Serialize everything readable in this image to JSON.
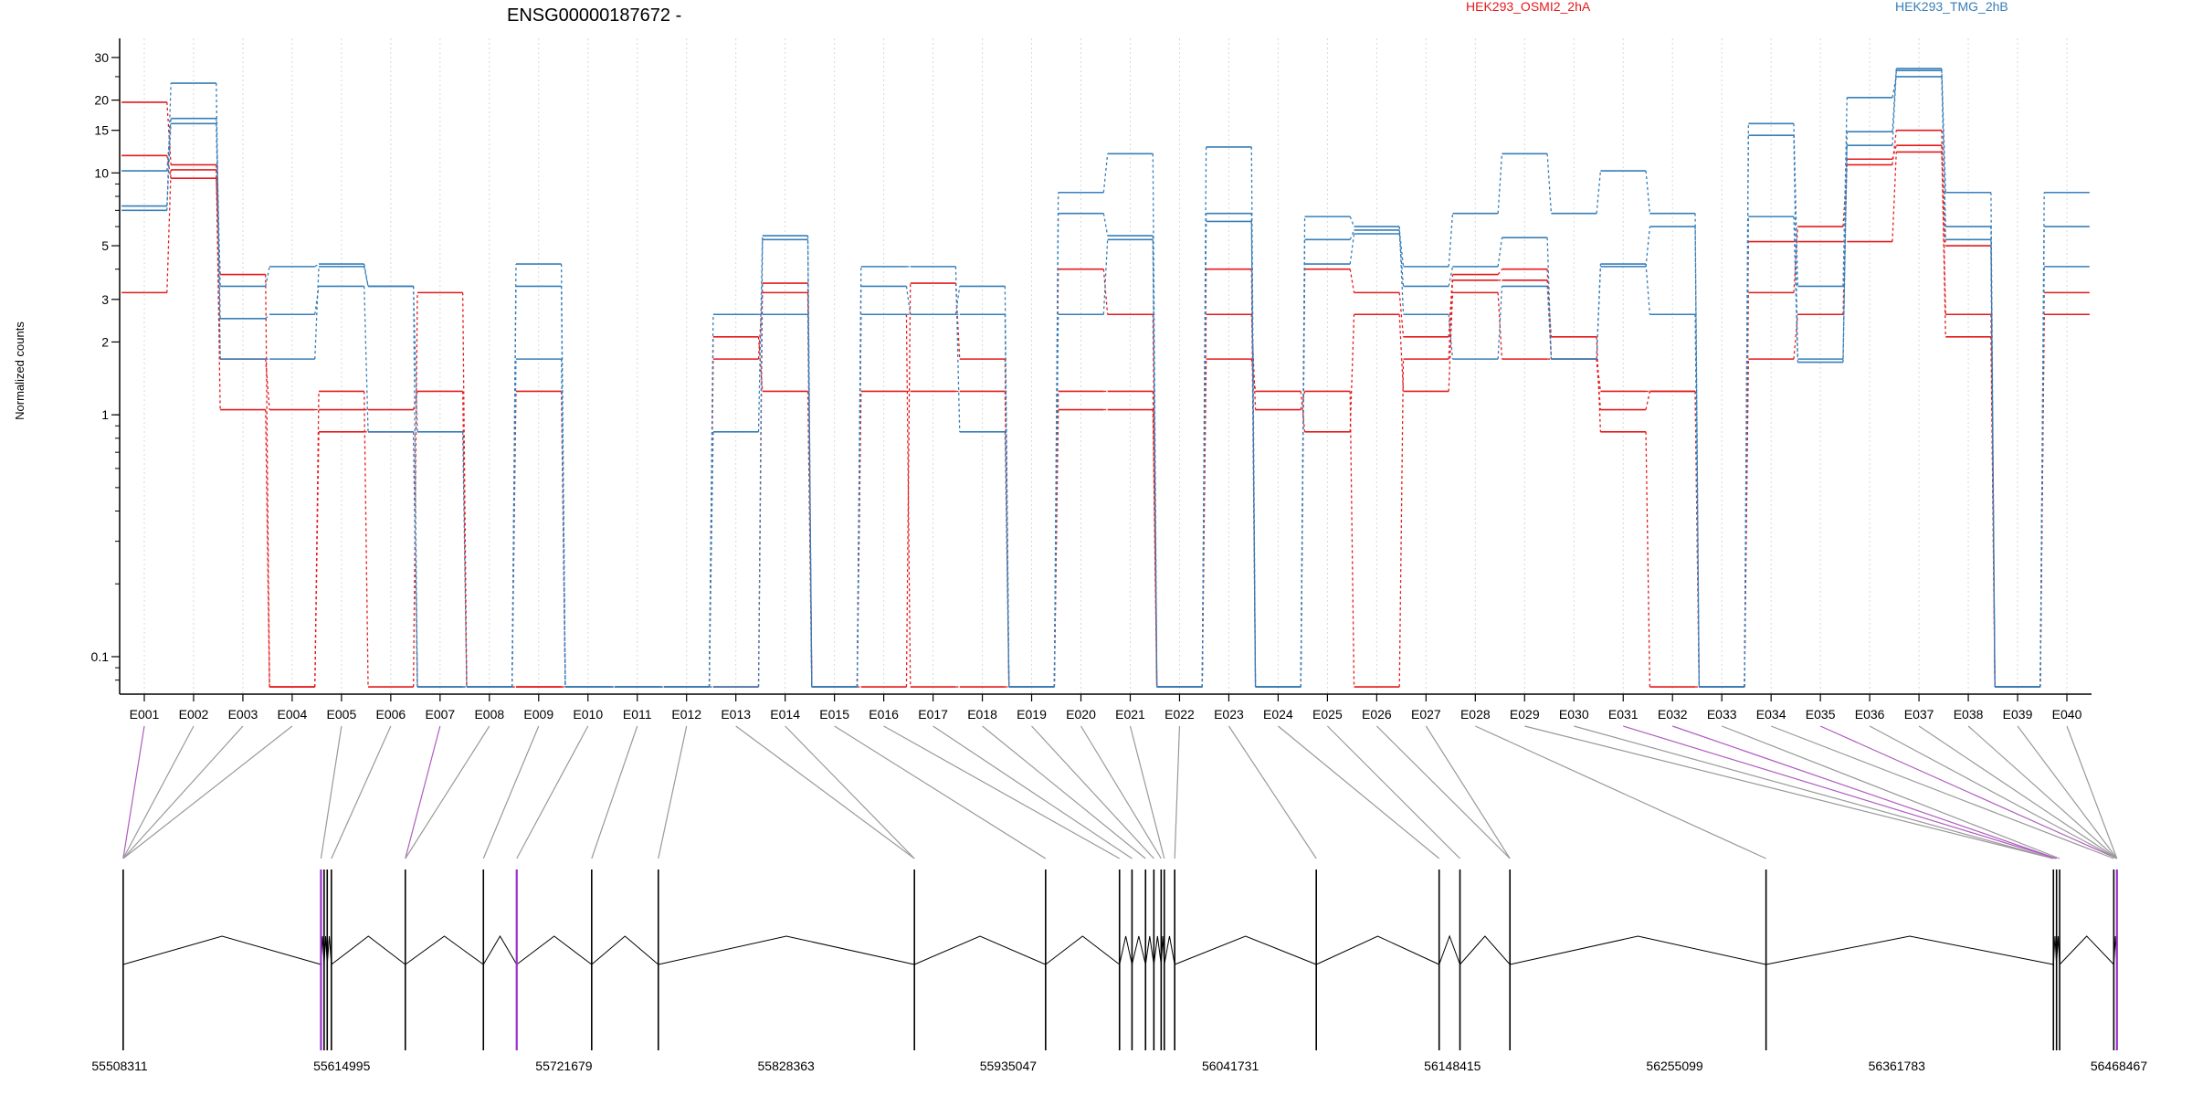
{
  "chart_data": {
    "type": "line",
    "title": "ENSG00000187672 -",
    "ylabel": "Normalized counts",
    "yscale": "log",
    "ylim": [
      0.07,
      36
    ],
    "yticks": [
      0.1,
      1,
      2,
      3,
      5,
      10,
      15,
      20,
      30
    ],
    "ytick_labels": [
      "0.1",
      "1",
      "2",
      "3",
      "5",
      "10",
      "15",
      "20",
      "30"
    ],
    "categories": [
      "E001",
      "E002",
      "E003",
      "E004",
      "E005",
      "E006",
      "E007",
      "E008",
      "E009",
      "E010",
      "E011",
      "E012",
      "E013",
      "E014",
      "E015",
      "E016",
      "E017",
      "E018",
      "E019",
      "E020",
      "E021",
      "E022",
      "E023",
      "E024",
      "E025",
      "E026",
      "E027",
      "E028",
      "E029",
      "E030",
      "E031",
      "E032",
      "E033",
      "E034",
      "E035",
      "E036",
      "E037",
      "E038",
      "E039",
      "E040"
    ],
    "legend": [
      {
        "name": "HEK293_OSMI2_2hA",
        "color": "#e41a1c"
      },
      {
        "name": "HEK293_TMG_2hB",
        "color": "#377eb8"
      }
    ],
    "floor_value": 0.075,
    "series": [
      {
        "group": "HEK293_OSMI2_2hA",
        "color": "#e41a1c",
        "values": [
          19.6,
          10.8,
          1.05,
          0.075,
          1.25,
          0.075,
          3.2,
          0.075,
          1.25,
          0.075,
          0.075,
          0.075,
          1.7,
          3.2,
          0.075,
          1.25,
          1.25,
          1.25,
          0.075,
          1.05,
          1.05,
          0.075,
          1.7,
          1.25,
          0.85,
          2.6,
          1.25,
          3.2,
          1.7,
          1.7,
          1.25,
          1.25,
          0.075,
          1.7,
          2.6,
          11.4,
          13.0,
          2.1,
          0.075,
          2.6
        ]
      },
      {
        "group": "HEK293_OSMI2_2hA",
        "color": "#e41a1c",
        "values": [
          3.2,
          10.3,
          1.7,
          1.05,
          1.05,
          1.05,
          1.25,
          0.075,
          0.075,
          0.075,
          0.075,
          0.075,
          2.1,
          1.25,
          0.075,
          0.075,
          3.5,
          1.7,
          0.075,
          4.0,
          2.6,
          0.075,
          2.6,
          1.05,
          1.25,
          0.075,
          1.7,
          3.6,
          3.6,
          2.1,
          0.85,
          0.075,
          0.075,
          3.2,
          6.0,
          10.8,
          15.0,
          2.6,
          0.075,
          3.2
        ]
      },
      {
        "group": "HEK293_OSMI2_2hA",
        "color": "#e41a1c",
        "values": [
          11.8,
          9.5,
          3.8,
          0.075,
          0.85,
          0.85,
          0.075,
          0.075,
          0.075,
          0.075,
          0.075,
          0.075,
          0.075,
          3.5,
          0.075,
          2.6,
          0.075,
          0.075,
          0.075,
          1.25,
          1.25,
          0.075,
          4.0,
          0.075,
          4.0,
          3.2,
          2.1,
          3.8,
          4.0,
          1.7,
          1.05,
          1.25,
          0.075,
          5.2,
          5.2,
          5.2,
          12.2,
          5.0,
          0.075,
          2.6
        ]
      },
      {
        "group": "HEK293_TMG_2hB",
        "color": "#377eb8",
        "values": [
          7.0,
          23.5,
          1.7,
          1.7,
          4.1,
          3.4,
          0.85,
          0.075,
          4.2,
          0.075,
          0.075,
          0.075,
          0.85,
          5.5,
          0.075,
          4.1,
          4.1,
          0.85,
          0.075,
          8.3,
          12.0,
          0.075,
          12.8,
          0.075,
          6.6,
          6.0,
          2.6,
          1.7,
          3.4,
          1.7,
          4.2,
          2.6,
          0.075,
          6.6,
          1.7,
          14.8,
          27.0,
          8.3,
          0.075,
          4.1
        ]
      },
      {
        "group": "HEK293_TMG_2hB",
        "color": "#377eb8",
        "values": [
          10.2,
          16.8,
          3.4,
          4.1,
          4.2,
          3.4,
          0.075,
          0.075,
          3.4,
          0.075,
          0.075,
          0.075,
          2.6,
          2.6,
          0.075,
          2.6,
          2.6,
          2.6,
          0.075,
          2.6,
          5.3,
          0.075,
          6.3,
          0.075,
          4.2,
          5.6,
          3.4,
          4.1,
          5.4,
          1.7,
          4.1,
          6.0,
          0.075,
          16.0,
          3.4,
          20.5,
          25.0,
          6.0,
          0.075,
          8.3
        ]
      },
      {
        "group": "HEK293_TMG_2hB",
        "color": "#377eb8",
        "values": [
          7.3,
          16.0,
          2.5,
          2.6,
          3.4,
          0.85,
          0.075,
          0.075,
          1.7,
          0.075,
          0.075,
          0.075,
          0.075,
          5.3,
          0.075,
          3.4,
          2.6,
          3.4,
          0.075,
          6.8,
          5.5,
          0.075,
          6.8,
          0.075,
          5.3,
          5.8,
          4.1,
          6.8,
          12.0,
          6.8,
          10.2,
          6.8,
          0.075,
          14.3,
          1.65,
          13.0,
          26.5,
          5.3,
          0.075,
          6.0
        ]
      }
    ],
    "gene_model": {
      "coord_labels": [
        "55508311",
        "55614995",
        "55721679",
        "55828363",
        "55935047",
        "56041731",
        "56148415",
        "56255099",
        "56361783",
        "56468467"
      ],
      "coord_range": [
        55508311,
        56468467
      ],
      "exon_positions": [
        55510000,
        55605000,
        55606500,
        55608000,
        55610000,
        55645500,
        55683000,
        55699000,
        55735000,
        55767000,
        55890000,
        55953000,
        55988500,
        55994500,
        56001000,
        56005000,
        56008500,
        56010000,
        56015000,
        56083000,
        56142000,
        56152000,
        56176000,
        56299000,
        56437000,
        56438500,
        56440000,
        56466000,
        56467500
      ],
      "highlighted_exons": [
        1,
        7,
        28,
        31,
        35
      ]
    }
  }
}
